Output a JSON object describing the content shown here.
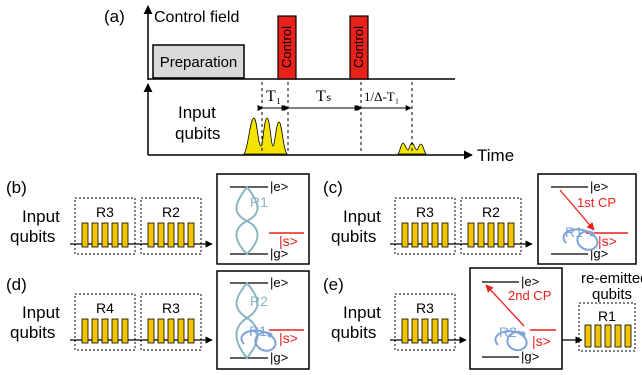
{
  "panels": {
    "a": {
      "label": "(a)",
      "control_axis_label": "Control field",
      "preparation_label": "Preparation",
      "control_pulse_1": "Control",
      "control_pulse_2": "Control",
      "input_label_line1": "Input",
      "input_label_line2": "qubits",
      "t1_label": "T₁",
      "ts_label": "Tₛ",
      "echo_label": "1/Δ-T₁",
      "time_label": "Time"
    },
    "b": {
      "label": "(b)",
      "input_line1": "Input",
      "input_line2": "qubits",
      "blocks": [
        "R3",
        "R2"
      ],
      "level_e": "|e>",
      "level_s": "|s>",
      "level_g": "|g>",
      "atom_labels": [
        "R1"
      ]
    },
    "c": {
      "label": "(c)",
      "input_line1": "Input",
      "input_line2": "qubits",
      "blocks": [
        "R3",
        "R2"
      ],
      "level_e": "|e>",
      "level_s": "|s>",
      "level_g": "|g>",
      "cp_label": "1st CP",
      "atom_labels": [
        "R1"
      ]
    },
    "d": {
      "label": "(d)",
      "input_line1": "Input",
      "input_line2": "qubits",
      "blocks": [
        "R4",
        "R3"
      ],
      "level_e": "|e>",
      "level_s": "|s>",
      "level_g": "|g>",
      "atom_labels": [
        "R2",
        "R1"
      ]
    },
    "e": {
      "label": "(e)",
      "input_line1": "Input",
      "input_line2": "qubits",
      "blocks": [
        "R3"
      ],
      "level_e": "|e>",
      "level_s": "|s>",
      "level_g": "|g>",
      "cp_label": "2nd CP",
      "atom_labels": [
        "R2"
      ],
      "reemitted_line1": "re-emitted",
      "reemitted_line2": "qubits",
      "output_block": "R1"
    }
  },
  "colors": {
    "control_pulse": "#e8211b",
    "preparation": "#d9d9d9",
    "qubit_pulse": "#f5e400",
    "qubit_bar": "#f2c400",
    "atom_blue": "#7fa3d9",
    "atom_teal": "#8ab7bf",
    "level_s": "#e8211b"
  }
}
